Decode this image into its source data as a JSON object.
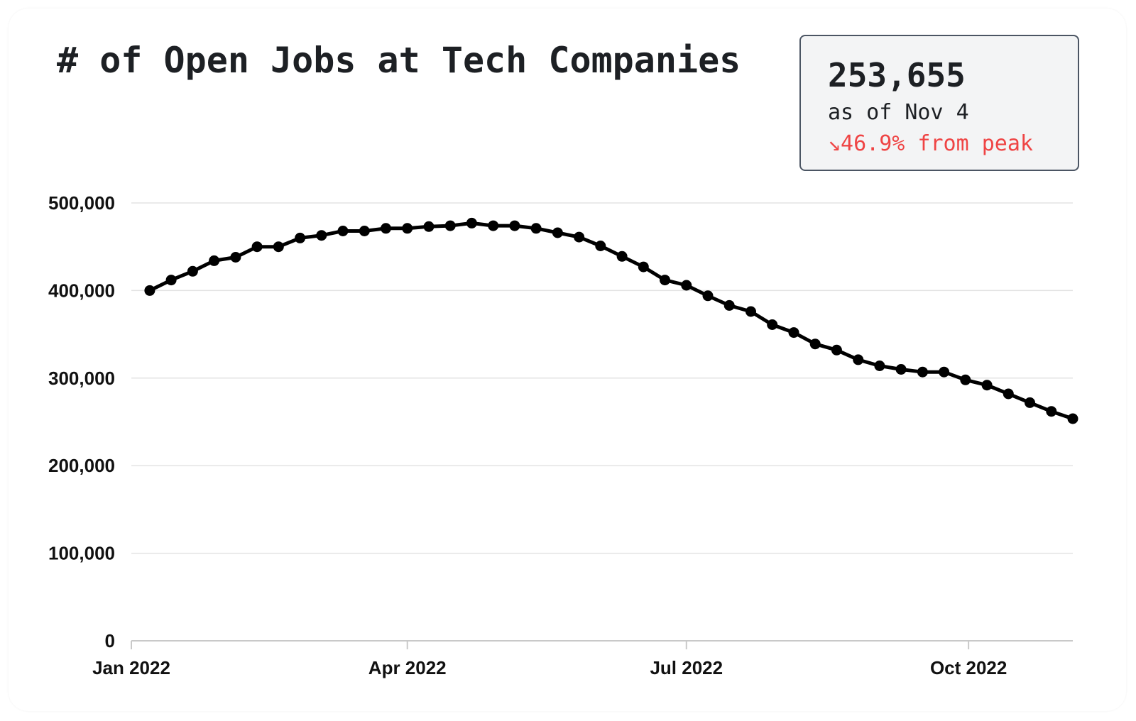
{
  "header": {
    "title": "# of Open Jobs at Tech Companies"
  },
  "stat": {
    "value": "253,655",
    "date": "as of Nov 4",
    "change": "↘46.9% from peak",
    "change_color": "#ef4444"
  },
  "chart_data": {
    "type": "line",
    "title": "# of Open Jobs at Tech Companies",
    "xlabel": "",
    "ylabel": "",
    "x_ticks": [
      {
        "label": "Jan 2022",
        "date": "2022-01-01"
      },
      {
        "label": "Apr 2022",
        "date": "2022-04-01"
      },
      {
        "label": "Jul 2022",
        "date": "2022-07-01"
      },
      {
        "label": "Oct 2022",
        "date": "2022-10-01"
      }
    ],
    "y_ticks": [
      0,
      100000,
      200000,
      300000,
      400000,
      500000
    ],
    "y_tick_labels": [
      "0",
      "100,000",
      "200,000",
      "300,000",
      "400,000",
      "500,000"
    ],
    "ylim": [
      0,
      500000
    ],
    "xlim": [
      "2022-01-01",
      "2022-11-04"
    ],
    "grid": true,
    "line_color": "#000000",
    "series": [
      {
        "x": [
          "2022-01-07",
          "2022-01-14",
          "2022-01-21",
          "2022-01-28",
          "2022-02-04",
          "2022-02-11",
          "2022-02-18",
          "2022-02-25",
          "2022-03-04",
          "2022-03-11",
          "2022-03-18",
          "2022-03-25",
          "2022-04-01",
          "2022-04-08",
          "2022-04-15",
          "2022-04-22",
          "2022-04-29",
          "2022-05-06",
          "2022-05-13",
          "2022-05-20",
          "2022-05-27",
          "2022-06-03",
          "2022-06-10",
          "2022-06-17",
          "2022-06-24",
          "2022-07-01",
          "2022-07-08",
          "2022-07-15",
          "2022-07-22",
          "2022-07-29",
          "2022-08-05",
          "2022-08-12",
          "2022-08-19",
          "2022-08-26",
          "2022-09-02",
          "2022-09-09",
          "2022-09-16",
          "2022-09-23",
          "2022-09-30",
          "2022-10-07",
          "2022-10-14",
          "2022-10-21",
          "2022-10-28",
          "2022-11-04"
        ],
        "values": [
          400000,
          412000,
          422000,
          434000,
          438000,
          450000,
          450000,
          460000,
          463000,
          468000,
          468000,
          471000,
          471000,
          473000,
          474000,
          477000,
          474000,
          474000,
          471000,
          466000,
          461000,
          451000,
          439000,
          427000,
          412000,
          406000,
          394000,
          383000,
          376000,
          361000,
          352000,
          339000,
          332000,
          321000,
          314000,
          310000,
          307000,
          307000,
          298000,
          292000,
          282000,
          272000,
          262000,
          253655
        ]
      }
    ]
  }
}
